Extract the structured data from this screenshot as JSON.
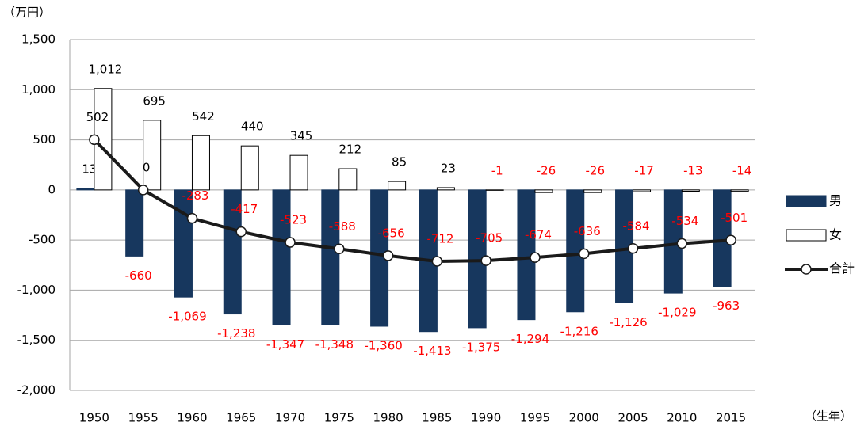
{
  "chart_data": {
    "type": "bar_line",
    "y_label": "（万円）",
    "x_label": "（生年）",
    "categories": [
      "1950",
      "1955",
      "1960",
      "1965",
      "1970",
      "1975",
      "1980",
      "1985",
      "1990",
      "1995",
      "2000",
      "2005",
      "2010",
      "2015"
    ],
    "series": [
      {
        "name": "男",
        "type": "bar",
        "color": "#17375e",
        "values": [
          13,
          -660,
          -1069,
          -1238,
          -1347,
          -1348,
          -1360,
          -1413,
          -1375,
          -1294,
          -1216,
          -1126,
          -1029,
          -963
        ],
        "value_labels": [
          "13",
          "-660",
          "-1,069",
          "-1,238",
          "-1,347",
          "-1,348",
          "-1,360",
          "-1,413",
          "-1,375",
          "-1,294",
          "-1,216",
          "-1,126",
          "-1,029",
          "-963"
        ]
      },
      {
        "name": "女",
        "type": "bar",
        "color": "#ffffff",
        "values": [
          1012,
          695,
          542,
          440,
          345,
          212,
          85,
          23,
          -1,
          -26,
          -26,
          -17,
          -13,
          -14
        ],
        "value_labels": [
          "1,012",
          "695",
          "542",
          "440",
          "345",
          "212",
          "85",
          "23",
          "-1",
          "-26",
          "-26",
          "-17",
          "-13",
          "-14"
        ]
      },
      {
        "name": "合計",
        "type": "line",
        "color": "#1a1a1a",
        "values": [
          502,
          0,
          -283,
          -417,
          -523,
          -588,
          -656,
          -712,
          -705,
          -674,
          -636,
          -584,
          -534,
          -501
        ]
      }
    ],
    "ylim": [
      -2000,
      1500
    ],
    "yticks": [
      {
        "value": -2000,
        "label": "-2,000"
      },
      {
        "value": -1500,
        "label": "-1,500"
      },
      {
        "value": -1000,
        "label": "-1,000"
      },
      -500,
      0,
      500,
      {
        "value": 1000,
        "label": "1,000"
      },
      {
        "value": 1500,
        "label": "1,500"
      }
    ],
    "grid": true,
    "legend": "right",
    "negative_label_color": "#ff0000"
  }
}
